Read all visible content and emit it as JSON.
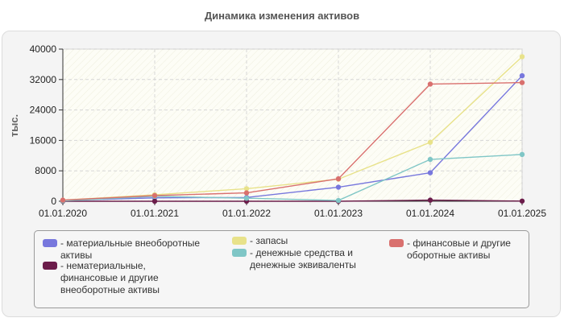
{
  "chart_data": {
    "type": "line",
    "title": "Динамика изменения активов",
    "ylabel": "тыс.",
    "xlabel": "",
    "x": [
      "01.01.2020",
      "01.01.2021",
      "01.01.2022",
      "01.01.2023",
      "01.01.2024",
      "01.01.2025"
    ],
    "yticks": [
      "0",
      "8000",
      "16000",
      "24000",
      "32000",
      "40000"
    ],
    "ylim": [
      0,
      40000
    ],
    "grid": true,
    "legend_position": "bottom",
    "series": [
      {
        "name": "- материальные внеоборотные активы",
        "color": "#7777dd",
        "values": [
          200,
          900,
          1000,
          3700,
          7500,
          33000
        ]
      },
      {
        "name": "- нематериальные, финансовые и другие внеоборотные активы",
        "color": "#6b1c4a",
        "values": [
          0,
          0,
          0,
          0,
          300,
          50
        ]
      },
      {
        "name": "- запасы",
        "color": "#e8e28a",
        "values": [
          300,
          1700,
          3300,
          5800,
          15500,
          38000
        ]
      },
      {
        "name": "- денежные средства и денежные эквиваленты",
        "color": "#7fc6c6",
        "values": [
          100,
          1300,
          800,
          200,
          11000,
          12300
        ]
      },
      {
        "name": "- финансовые и другие оборотные активы",
        "color": "#d9706e",
        "values": [
          300,
          1500,
          2200,
          5900,
          30800,
          31200
        ]
      }
    ]
  }
}
